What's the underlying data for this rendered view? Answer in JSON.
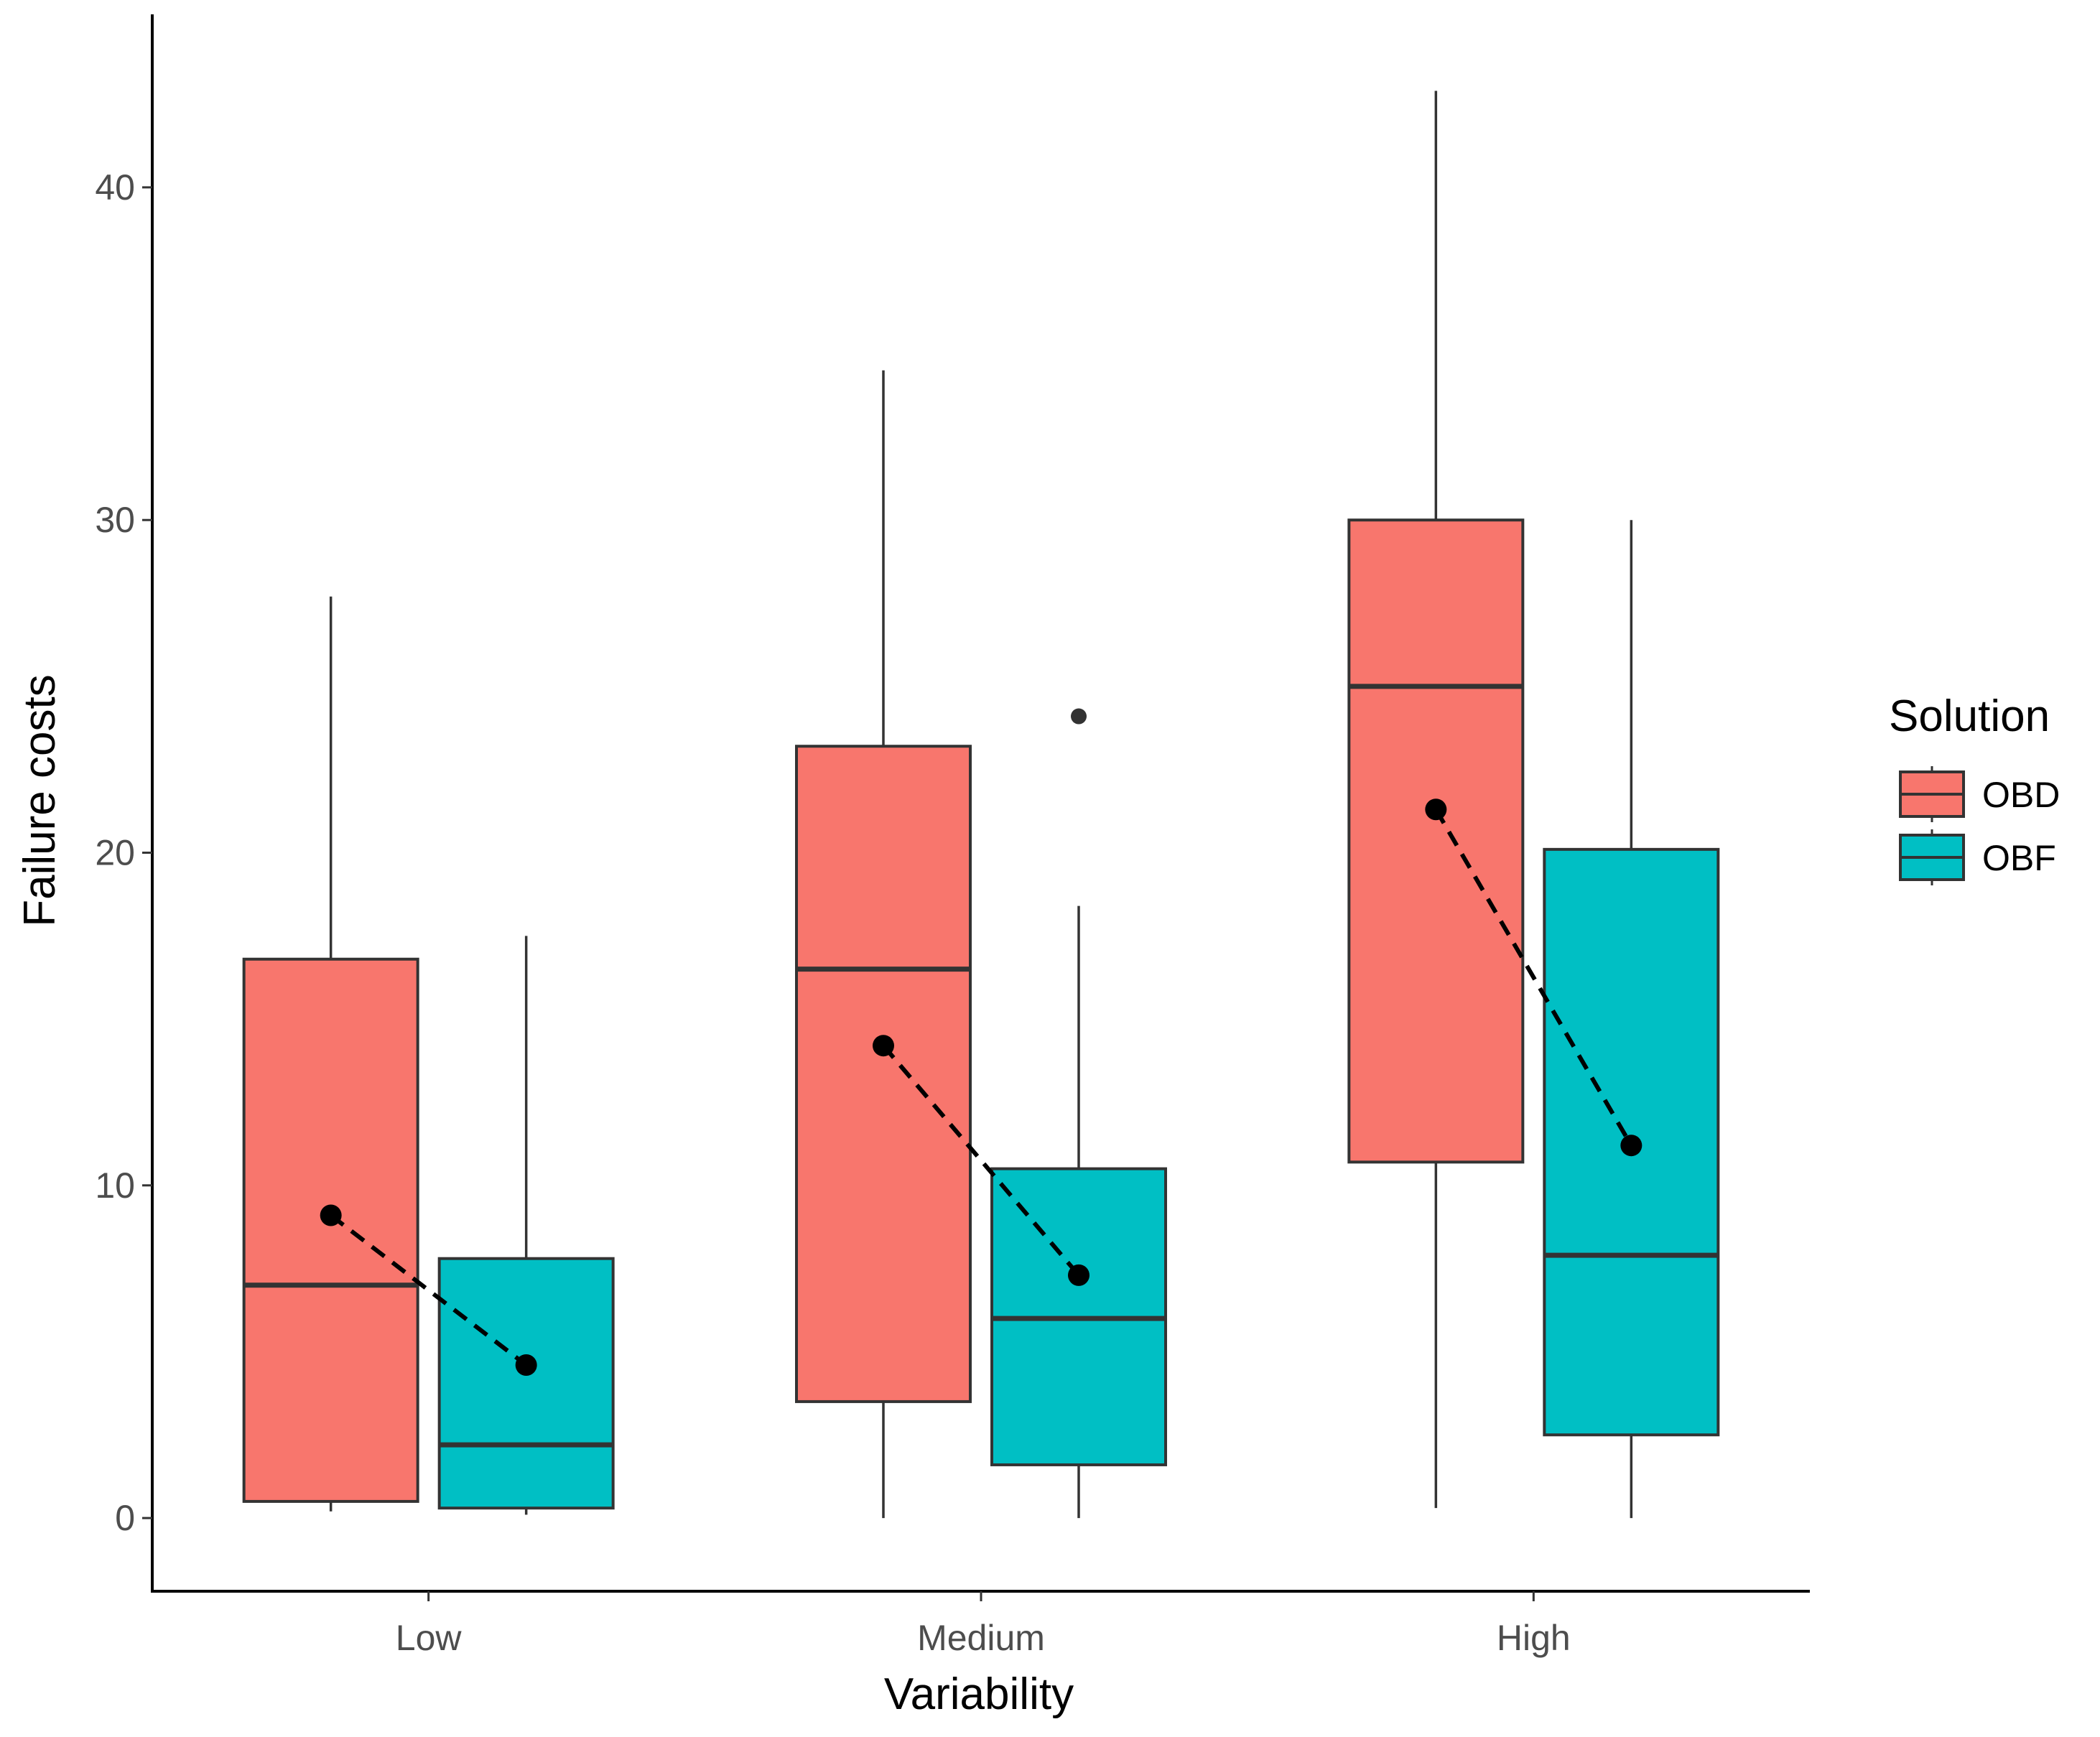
{
  "chart_data": {
    "type": "boxplot",
    "title": "",
    "xlabel": "Variability",
    "ylabel": "Failure costs",
    "categories": [
      "Low",
      "Medium",
      "High"
    ],
    "ylim": [
      -2.2,
      45.2
    ],
    "yticks": [
      0,
      10,
      20,
      30,
      40
    ],
    "ytick_labels": [
      "0",
      "10",
      "20",
      "30",
      "40"
    ],
    "grid": false,
    "legend": {
      "title": "Solution",
      "position": "right",
      "entries": [
        {
          "name": "OBD",
          "color": "#F8766D"
        },
        {
          "name": "OBF",
          "color": "#00BFC4"
        }
      ]
    },
    "series": [
      {
        "name": "OBD",
        "color": "#F8766D",
        "boxes": [
          {
            "category": "Low",
            "whisker_low": 0.2,
            "q1": 0.5,
            "median": 7.0,
            "q3": 16.8,
            "whisker_high": 27.7,
            "outliers": []
          },
          {
            "category": "Medium",
            "whisker_low": 0.0,
            "q1": 3.5,
            "median": 16.5,
            "q3": 23.2,
            "whisker_high": 34.5,
            "outliers": []
          },
          {
            "category": "High",
            "whisker_low": 0.3,
            "q1": 10.7,
            "median": 25.0,
            "q3": 30.0,
            "whisker_high": 42.9,
            "outliers": []
          }
        ]
      },
      {
        "name": "OBF",
        "color": "#00BFC4",
        "boxes": [
          {
            "category": "Low",
            "whisker_low": 0.1,
            "q1": 0.3,
            "median": 2.2,
            "q3": 7.8,
            "whisker_high": 17.5,
            "outliers": []
          },
          {
            "category": "Medium",
            "whisker_low": 0.0,
            "q1": 1.6,
            "median": 6.0,
            "q3": 10.5,
            "whisker_high": 18.4,
            "outliers": [
              24.1
            ]
          },
          {
            "category": "High",
            "whisker_low": 0.0,
            "q1": 2.5,
            "median": 7.9,
            "q3": 20.1,
            "whisker_high": 30.0,
            "outliers": []
          }
        ]
      }
    ],
    "means": [
      {
        "category": "Low",
        "OBD": 9.1,
        "OBF": 4.6
      },
      {
        "category": "Medium",
        "OBD": 14.2,
        "OBF": 7.3
      },
      {
        "category": "High",
        "OBD": 21.3,
        "OBF": 11.2
      }
    ]
  }
}
